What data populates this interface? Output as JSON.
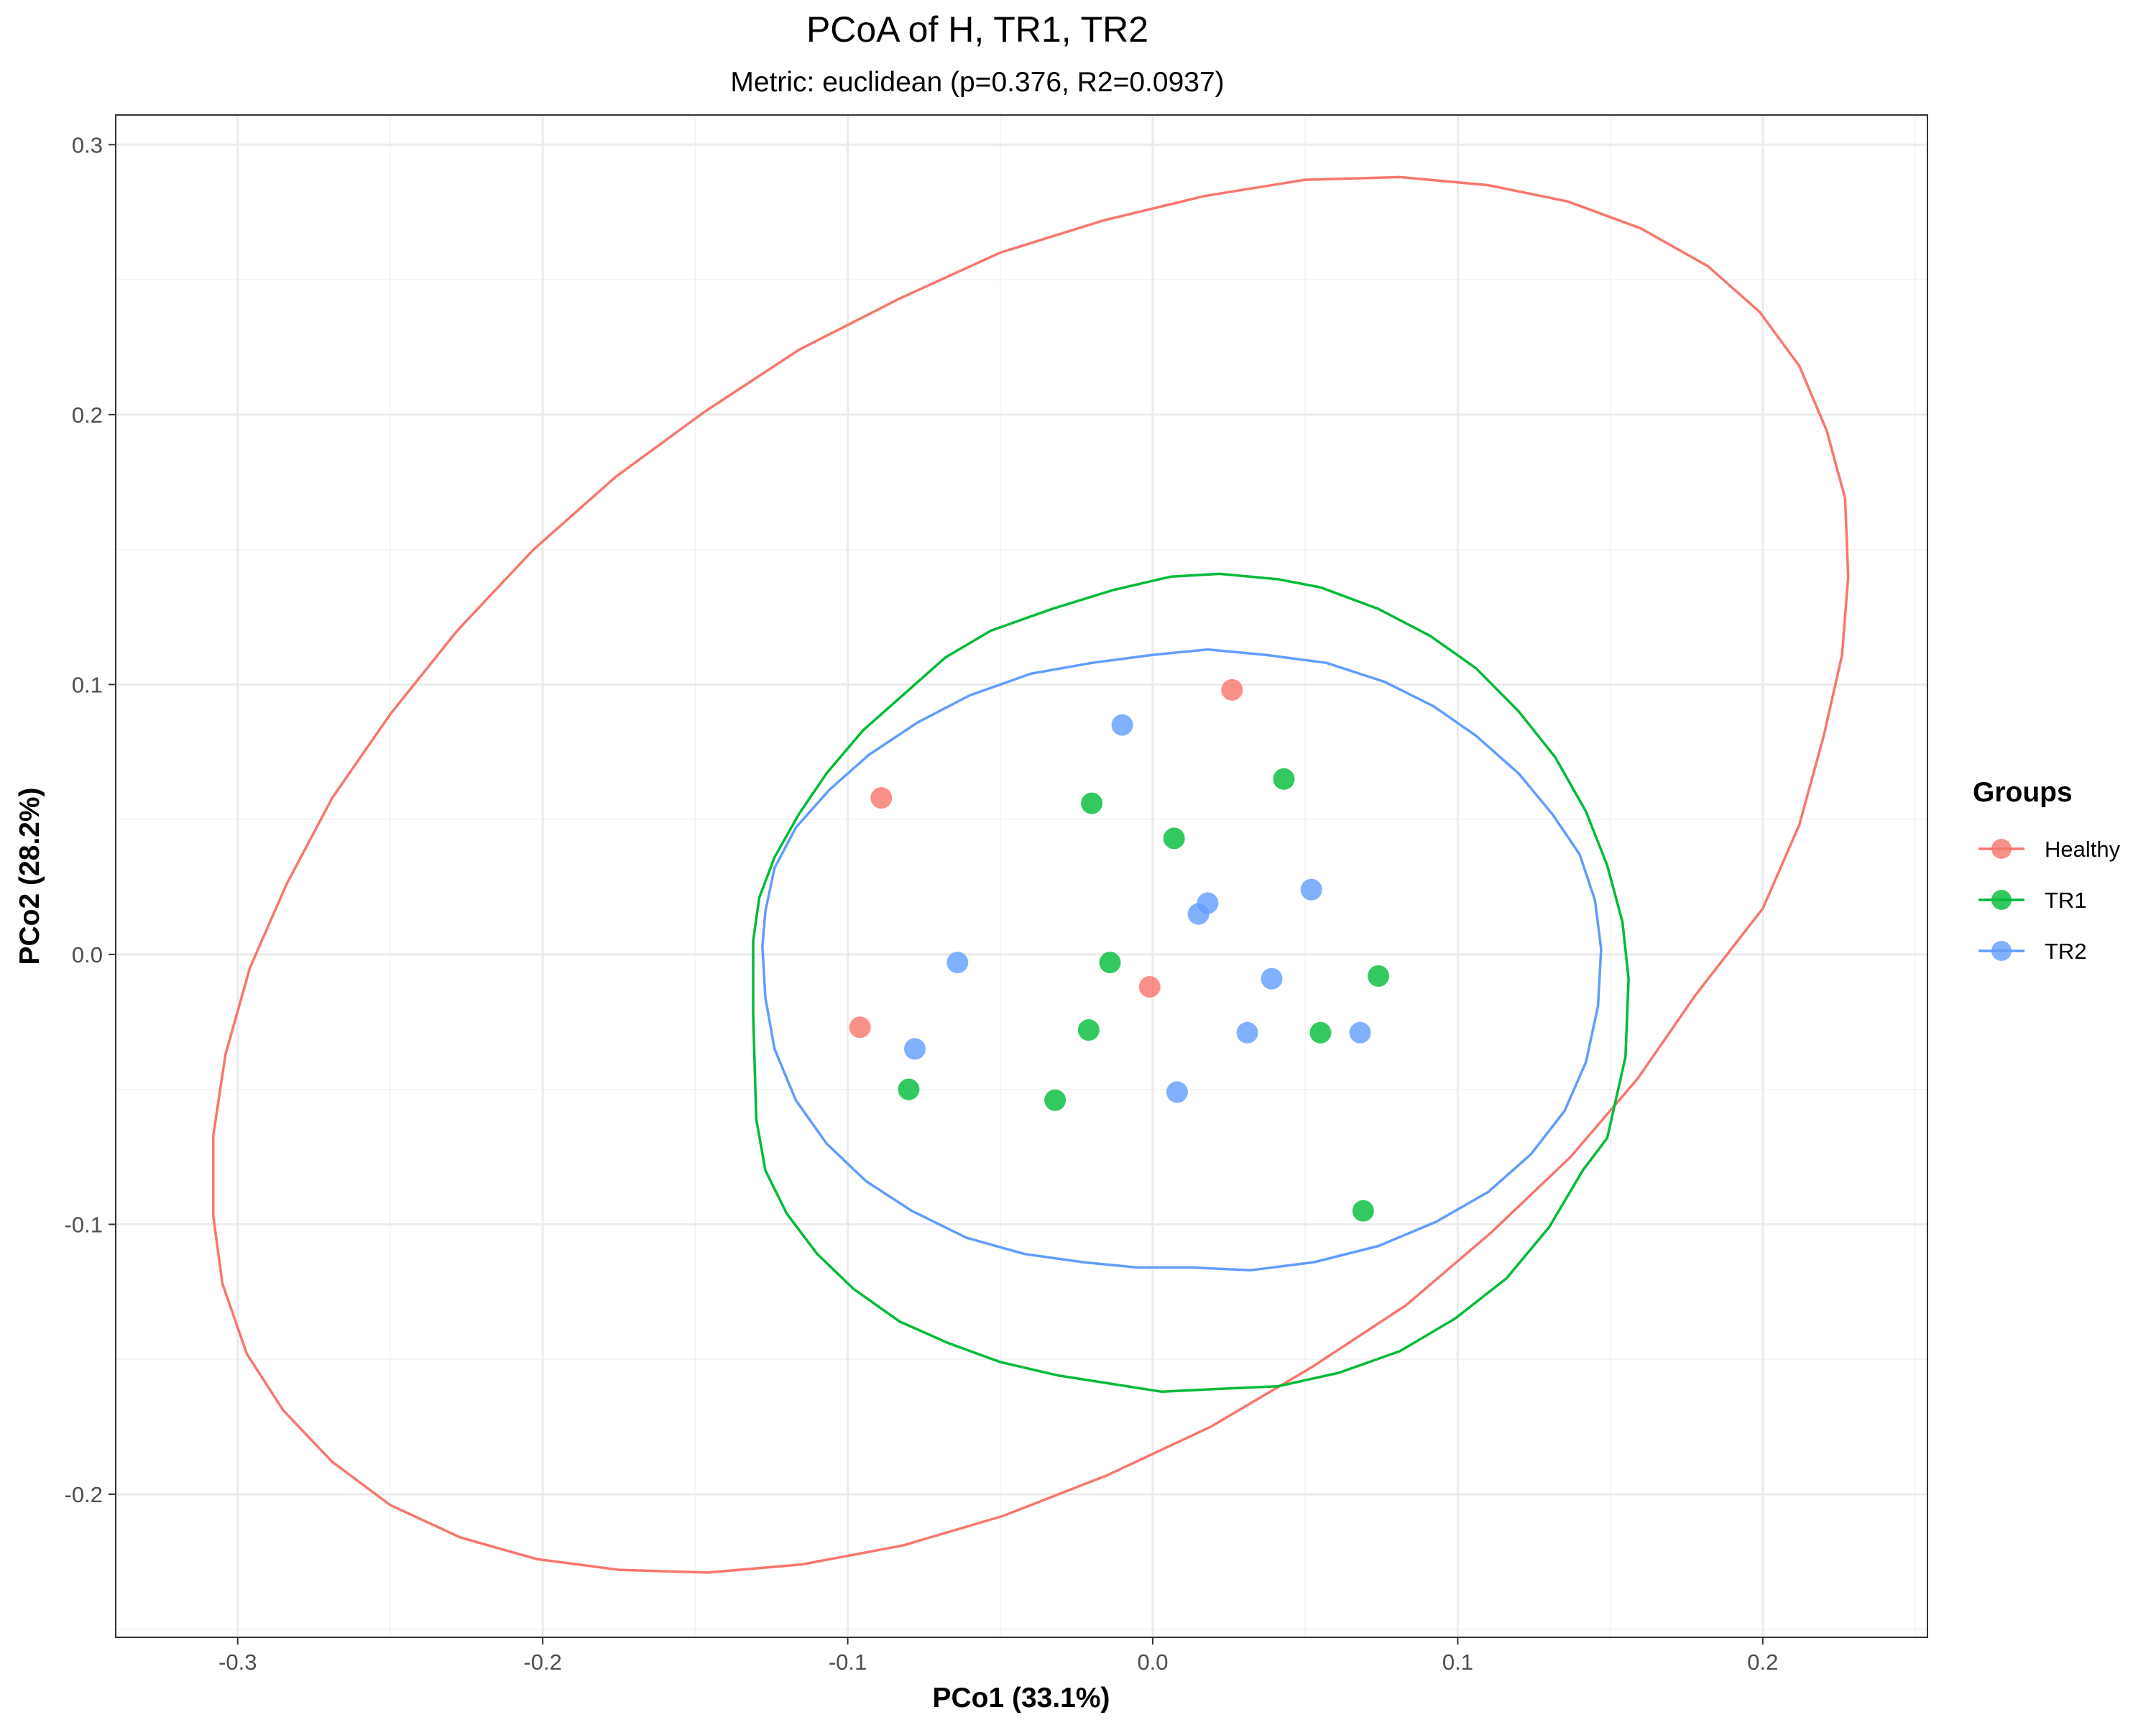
{
  "chart_data": {
    "type": "scatter",
    "title": "PCoA of H, TR1, TR2",
    "subtitle": "Metric: euclidean (p=0.376, R2=0.0937)",
    "xlabel": "PCo1 (33.1%)",
    "ylabel": "PCo2 (28.2%)",
    "xlim": [
      -0.34,
      0.254
    ],
    "ylim": [
      -0.253,
      0.311
    ],
    "xticks": [
      -0.3,
      -0.2,
      -0.1,
      0.0,
      0.1,
      0.2
    ],
    "xtick_labels": [
      "-0.3",
      "-0.2",
      "-0.1",
      "0.0",
      "0.1",
      "0.2"
    ],
    "yticks": [
      -0.2,
      -0.1,
      0.0,
      0.1,
      0.2,
      0.3
    ],
    "ytick_labels": [
      "-0.2",
      "-0.1",
      "0.0",
      "0.1",
      "0.2",
      "0.3"
    ],
    "grid": true,
    "legend": {
      "title": "Groups",
      "position": "right"
    },
    "series": [
      {
        "name": "Healthy",
        "color": "#F8766D",
        "points": [
          [
            0.026,
            0.098
          ],
          [
            -0.089,
            0.058
          ],
          [
            -0.096,
            -0.027
          ],
          [
            -0.001,
            -0.012
          ]
        ],
        "ellipse": [
          [
            -0.308,
            -0.067
          ],
          [
            -0.308,
            -0.097
          ],
          [
            -0.305,
            -0.122
          ],
          [
            -0.297,
            -0.148
          ],
          [
            -0.285,
            -0.169
          ],
          [
            -0.269,
            -0.188
          ],
          [
            -0.25,
            -0.204
          ],
          [
            -0.227,
            -0.216
          ],
          [
            -0.202,
            -0.224
          ],
          [
            -0.175,
            -0.228
          ],
          [
            -0.146,
            -0.229
          ],
          [
            -0.115,
            -0.226
          ],
          [
            -0.082,
            -0.219
          ],
          [
            -0.049,
            -0.208
          ],
          [
            -0.015,
            -0.193
          ],
          [
            0.019,
            -0.175
          ],
          [
            0.052,
            -0.153
          ],
          [
            0.083,
            -0.13
          ],
          [
            0.111,
            -0.103
          ],
          [
            0.137,
            -0.075
          ],
          [
            0.159,
            -0.046
          ],
          [
            0.178,
            -0.015
          ],
          [
            0.2,
            0.017
          ],
          [
            0.212,
            0.048
          ],
          [
            0.22,
            0.081
          ],
          [
            0.226,
            0.111
          ],
          [
            0.228,
            0.14
          ],
          [
            0.227,
            0.169
          ],
          [
            0.221,
            0.194
          ],
          [
            0.212,
            0.218
          ],
          [
            0.199,
            0.238
          ],
          [
            0.182,
            0.255
          ],
          [
            0.16,
            0.269
          ],
          [
            0.136,
            0.279
          ],
          [
            0.11,
            0.285
          ],
          [
            0.081,
            0.288
          ],
          [
            0.05,
            0.287
          ],
          [
            0.017,
            0.281
          ],
          [
            -0.016,
            0.272
          ],
          [
            -0.05,
            0.26
          ],
          [
            -0.083,
            0.243
          ],
          [
            -0.116,
            0.224
          ],
          [
            -0.147,
            0.201
          ],
          [
            -0.176,
            0.177
          ],
          [
            -0.203,
            0.15
          ],
          [
            -0.228,
            0.12
          ],
          [
            -0.25,
            0.089
          ],
          [
            -0.269,
            0.058
          ],
          [
            -0.284,
            0.026
          ],
          [
            -0.296,
            -0.005
          ],
          [
            -0.304,
            -0.037
          ],
          [
            -0.308,
            -0.067
          ]
        ]
      },
      {
        "name": "TR1",
        "color": "#00BA38",
        "points": [
          [
            0.043,
            0.065
          ],
          [
            -0.02,
            0.056
          ],
          [
            0.007,
            0.043
          ],
          [
            -0.014,
            -0.003
          ],
          [
            0.074,
            -0.008
          ],
          [
            -0.021,
            -0.028
          ],
          [
            0.055,
            -0.029
          ],
          [
            -0.08,
            -0.05
          ],
          [
            -0.032,
            -0.054
          ],
          [
            0.069,
            -0.095
          ]
        ],
        "ellipse": [
          [
            0.156,
            -0.009
          ],
          [
            0.155,
            -0.038
          ],
          [
            0.149,
            -0.068
          ],
          [
            0.141,
            -0.08
          ],
          [
            0.13,
            -0.101
          ],
          [
            0.116,
            -0.12
          ],
          [
            0.099,
            -0.135
          ],
          [
            0.081,
            -0.147
          ],
          [
            0.061,
            -0.155
          ],
          [
            0.041,
            -0.16
          ],
          [
            0.021,
            -0.161
          ],
          [
            0.003,
            -0.162
          ],
          [
            -0.014,
            -0.159
          ],
          [
            -0.031,
            -0.156
          ],
          [
            -0.05,
            -0.151
          ],
          [
            -0.067,
            -0.144
          ],
          [
            -0.083,
            -0.136
          ],
          [
            -0.098,
            -0.124
          ],
          [
            -0.11,
            -0.111
          ],
          [
            -0.12,
            -0.096
          ],
          [
            -0.127,
            -0.08
          ],
          [
            -0.13,
            -0.061
          ],
          [
            -0.131,
            -0.022
          ],
          [
            -0.131,
            0.005
          ],
          [
            -0.129,
            0.021
          ],
          [
            -0.124,
            0.036
          ],
          [
            -0.116,
            0.052
          ],
          [
            -0.107,
            0.067
          ],
          [
            -0.095,
            0.083
          ],
          [
            -0.082,
            0.096
          ],
          [
            -0.068,
            0.11
          ],
          [
            -0.053,
            0.12
          ],
          [
            -0.033,
            0.128
          ],
          [
            -0.013,
            0.135
          ],
          [
            0.006,
            0.14
          ],
          [
            0.022,
            0.141
          ],
          [
            0.041,
            0.139
          ],
          [
            0.055,
            0.136
          ],
          [
            0.074,
            0.128
          ],
          [
            0.091,
            0.118
          ],
          [
            0.106,
            0.106
          ],
          [
            0.12,
            0.09
          ],
          [
            0.132,
            0.073
          ],
          [
            0.142,
            0.053
          ],
          [
            0.149,
            0.033
          ],
          [
            0.154,
            0.012
          ],
          [
            0.156,
            -0.009
          ]
        ]
      },
      {
        "name": "TR2",
        "color": "#619CFF",
        "points": [
          [
            -0.01,
            0.085
          ],
          [
            0.052,
            0.024
          ],
          [
            0.018,
            0.019
          ],
          [
            0.015,
            0.015
          ],
          [
            -0.064,
            -0.003
          ],
          [
            0.039,
            -0.009
          ],
          [
            0.031,
            -0.029
          ],
          [
            0.068,
            -0.029
          ],
          [
            -0.078,
            -0.035
          ],
          [
            0.008,
            -0.051
          ]
        ],
        "ellipse": [
          [
            0.147,
            0.002
          ],
          [
            0.146,
            -0.019
          ],
          [
            0.142,
            -0.04
          ],
          [
            0.135,
            -0.058
          ],
          [
            0.124,
            -0.074
          ],
          [
            0.11,
            -0.088
          ],
          [
            0.093,
            -0.099
          ],
          [
            0.074,
            -0.108
          ],
          [
            0.053,
            -0.114
          ],
          [
            0.032,
            -0.117
          ],
          [
            0.013,
            -0.116
          ],
          [
            -0.005,
            -0.116
          ],
          [
            -0.023,
            -0.114
          ],
          [
            -0.042,
            -0.111
          ],
          [
            -0.061,
            -0.105
          ],
          [
            -0.079,
            -0.095
          ],
          [
            -0.094,
            -0.084
          ],
          [
            -0.107,
            -0.07
          ],
          [
            -0.117,
            -0.054
          ],
          [
            -0.124,
            -0.035
          ],
          [
            -0.127,
            -0.016
          ],
          [
            -0.128,
            0.003
          ],
          [
            -0.127,
            0.016
          ],
          [
            -0.124,
            0.032
          ],
          [
            -0.117,
            0.047
          ],
          [
            -0.106,
            0.061
          ],
          [
            -0.093,
            0.074
          ],
          [
            -0.077,
            0.086
          ],
          [
            -0.06,
            0.096
          ],
          [
            -0.04,
            0.104
          ],
          [
            -0.02,
            0.108
          ],
          [
            0.0,
            0.111
          ],
          [
            0.018,
            0.113
          ],
          [
            0.037,
            0.111
          ],
          [
            0.057,
            0.108
          ],
          [
            0.076,
            0.101
          ],
          [
            0.092,
            0.092
          ],
          [
            0.106,
            0.081
          ],
          [
            0.12,
            0.067
          ],
          [
            0.131,
            0.052
          ],
          [
            0.14,
            0.037
          ],
          [
            0.145,
            0.02
          ],
          [
            0.147,
            0.002
          ]
        ]
      }
    ]
  }
}
